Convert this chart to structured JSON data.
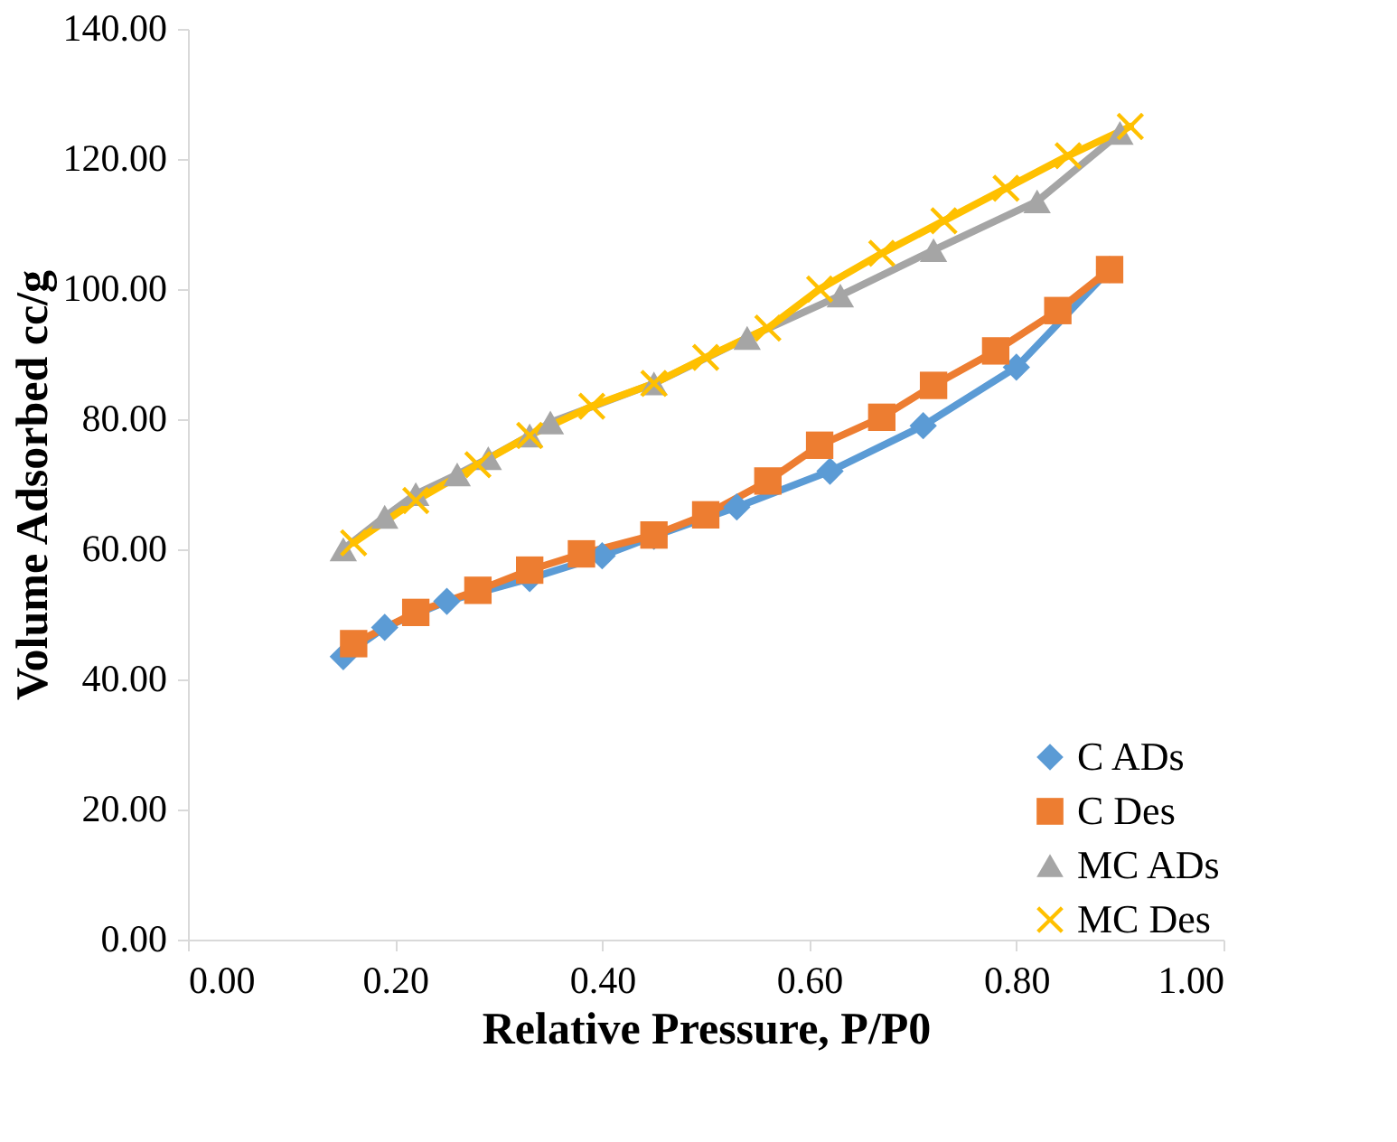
{
  "chart_data": {
    "type": "line",
    "xlabel": "Relative Pressure, P/P0",
    "ylabel": "Volume Adsorbed cc/g",
    "xlim": [
      0,
      1
    ],
    "ylim": [
      0,
      140
    ],
    "xticks": [
      {
        "value": 0,
        "label": "0.00"
      },
      {
        "value": 0.2,
        "label": "0.20"
      },
      {
        "value": 0.4,
        "label": "0.40"
      },
      {
        "value": 0.6,
        "label": "0.60"
      },
      {
        "value": 0.8,
        "label": "0.80"
      },
      {
        "value": 1,
        "label": "1.00"
      }
    ],
    "yticks": [
      {
        "value": 0,
        "label": "0.00"
      },
      {
        "value": 20,
        "label": "20.00"
      },
      {
        "value": 40,
        "label": "40.00"
      },
      {
        "value": 60,
        "label": "60.00"
      },
      {
        "value": 80,
        "label": "80.00"
      },
      {
        "value": 100,
        "label": "100.00"
      },
      {
        "value": 120,
        "label": "120.00"
      },
      {
        "value": 140,
        "label": "140.00"
      }
    ],
    "grid": false,
    "legend": "bottom right",
    "line_style": "solid",
    "series": [
      {
        "name": "C ADs",
        "color": "#5b9bd5",
        "marker": "diamond",
        "x": [
          0.15,
          0.19,
          0.25,
          0.33,
          0.4,
          0.45,
          0.53,
          0.62,
          0.71,
          0.8,
          0.89
        ],
        "values": [
          43.5,
          48,
          52,
          55.5,
          59,
          62,
          66.5,
          72,
          79,
          88,
          103
        ]
      },
      {
        "name": "C Des",
        "color": "#ed7d31",
        "marker": "square",
        "x": [
          0.16,
          0.22,
          0.28,
          0.33,
          0.38,
          0.45,
          0.5,
          0.56,
          0.61,
          0.67,
          0.72,
          0.78,
          0.84,
          0.89
        ],
        "values": [
          45.5,
          50.3,
          53.7,
          56.8,
          59.3,
          62.2,
          65.3,
          70.5,
          76,
          80.3,
          85.2,
          90.5,
          96.7,
          103
        ]
      },
      {
        "name": "MC ADs",
        "color": "#a5a5a5",
        "marker": "triangle",
        "x": [
          0.15,
          0.19,
          0.22,
          0.26,
          0.29,
          0.33,
          0.35,
          0.45,
          0.54,
          0.63,
          0.72,
          0.82,
          0.9
        ],
        "values": [
          60,
          65,
          68.5,
          71.5,
          74,
          77.5,
          79.5,
          85.5,
          92.5,
          99,
          106,
          113.5,
          124
        ]
      },
      {
        "name": "MC Des",
        "color": "#ffc000",
        "marker": "cross",
        "x": [
          0.16,
          0.22,
          0.28,
          0.33,
          0.39,
          0.45,
          0.5,
          0.56,
          0.61,
          0.67,
          0.73,
          0.79,
          0.85,
          0.91
        ],
        "values": [
          61,
          67.5,
          73,
          77.5,
          82,
          85.5,
          89.5,
          94,
          100,
          105.5,
          110.5,
          115.5,
          120.5,
          125
        ]
      }
    ]
  }
}
